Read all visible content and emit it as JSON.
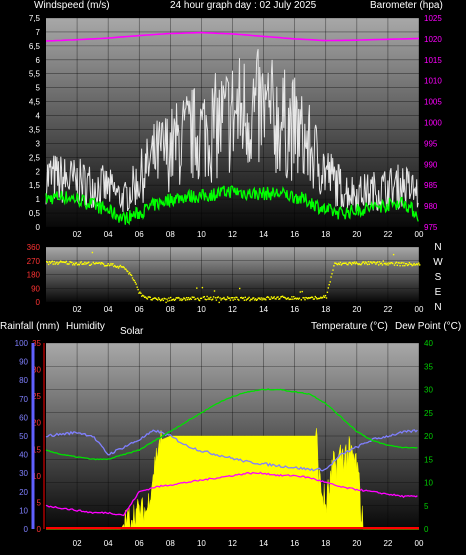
{
  "header": {
    "wind_label": "Windspeed (m/s)",
    "title": "24 hour graph day : 02 July 2025",
    "baro_label": "Barometer (hpa)"
  },
  "direction": {
    "compass": [
      "N",
      "W",
      "S",
      "E",
      "N"
    ]
  },
  "lower_header": {
    "rain_label": "Rainfall (mm)",
    "humidity_label": "Humidity",
    "solar_label": "Solar",
    "temperature_label": "Temperature (°C)",
    "dewpoint_label": "Dew Point (°C)"
  },
  "colors": {
    "wind_gust": "#e6e6e6",
    "wind_avg": "#00ff00",
    "barometer": "#ff00ff",
    "direction": "#ffff00",
    "solar": "#ffff00",
    "temperature": "#00e000",
    "humidity": "#8080ff",
    "dewpoint": "#ff00ff",
    "rain": "#ff0000"
  },
  "chart_data": [
    {
      "type": "line",
      "panel": "wind-barometer",
      "x_ticks": [
        "02",
        "04",
        "06",
        "08",
        "10",
        "12",
        "14",
        "16",
        "18",
        "20",
        "22",
        "00"
      ],
      "xlim_hours": [
        0,
        24
      ],
      "y_left_ticks": [
        "0",
        "0,5",
        "1",
        "1,5",
        "2",
        "2,5",
        "3",
        "3,5",
        "4",
        "4,5",
        "5",
        "5,5",
        "6",
        "6,5",
        "7",
        "7,5"
      ],
      "y_left_range": [
        0,
        7.5
      ],
      "y_right_ticks": [
        "975",
        "980",
        "985",
        "990",
        "995",
        "1000",
        "1005",
        "1010",
        "1015",
        "1020",
        "1025"
      ],
      "y_right_range": [
        975,
        1025
      ],
      "series": [
        {
          "key": "gust",
          "x": [
            0,
            1,
            2,
            3,
            4,
            5,
            6,
            7,
            8,
            9,
            10,
            11,
            12,
            13,
            14,
            15,
            16,
            17,
            18,
            19,
            20,
            21,
            22,
            23,
            24
          ],
          "values": [
            1.8,
            1.7,
            1.6,
            1.5,
            1.4,
            1.0,
            1.7,
            2.5,
            2.8,
            3.2,
            3.4,
            3.6,
            4.0,
            4.2,
            4.1,
            3.8,
            3.5,
            2.8,
            2.0,
            1.4,
            1.2,
            1.3,
            1.4,
            1.5,
            1.2
          ]
        },
        {
          "key": "average",
          "x": [
            0,
            1,
            2,
            3,
            4,
            5,
            6,
            7,
            8,
            9,
            10,
            11,
            12,
            13,
            14,
            15,
            16,
            17,
            18,
            19,
            20,
            21,
            22,
            23,
            24
          ],
          "values": [
            1.0,
            1.1,
            1.0,
            0.8,
            0.6,
            0.3,
            0.5,
            0.8,
            1.0,
            1.1,
            1.1,
            1.2,
            1.3,
            1.2,
            1.2,
            1.2,
            1.1,
            0.9,
            0.6,
            0.5,
            0.6,
            0.7,
            0.8,
            0.9,
            0.4
          ]
        },
        {
          "key": "barometer",
          "x": [
            0,
            2,
            4,
            6,
            8,
            10,
            12,
            14,
            16,
            18,
            20,
            22,
            24
          ],
          "values": [
            1019.5,
            1019.8,
            1020.2,
            1020.8,
            1021.3,
            1021.5,
            1021.2,
            1020.6,
            1020.0,
            1019.6,
            1019.7,
            1019.9,
            1020.1
          ]
        }
      ]
    },
    {
      "type": "scatter",
      "panel": "wind-direction",
      "x_ticks": [
        "02",
        "04",
        "06",
        "08",
        "10",
        "12",
        "14",
        "16",
        "18",
        "20",
        "22",
        "00"
      ],
      "xlim_hours": [
        0,
        24
      ],
      "y_ticks": [
        "0",
        "90",
        "180",
        "270",
        "360"
      ],
      "y_range": [
        0,
        360
      ],
      "series": [
        {
          "key": "direction",
          "x": [
            0,
            1,
            2,
            3,
            4,
            5,
            5.5,
            6,
            6.5,
            7,
            8,
            9,
            10,
            11,
            12,
            13,
            14,
            15,
            16,
            17,
            18,
            18.5,
            19,
            20,
            21,
            22,
            23,
            24
          ],
          "values": [
            260,
            262,
            258,
            255,
            250,
            230,
            170,
            60,
            30,
            20,
            22,
            25,
            30,
            28,
            26,
            24,
            28,
            32,
            30,
            25,
            40,
            250,
            255,
            258,
            258,
            255,
            252,
            250
          ]
        }
      ]
    },
    {
      "type": "line",
      "panel": "temperature-humidity-solar",
      "x_ticks": [
        "02",
        "04",
        "06",
        "08",
        "10",
        "12",
        "14",
        "16",
        "18",
        "20",
        "22",
        "00"
      ],
      "xlim_hours": [
        0,
        24
      ],
      "y_humidity_ticks": [
        "0",
        "10",
        "20",
        "30",
        "40",
        "50",
        "60",
        "70",
        "80",
        "90",
        "100"
      ],
      "y_humidity_range": [
        0,
        100
      ],
      "y_rain_ticks": [
        "0",
        "5",
        "10",
        "15",
        "20",
        "25",
        "30",
        "35"
      ],
      "y_rain_range": [
        0,
        35
      ],
      "y_temp_ticks": [
        "0",
        "5",
        "10",
        "15",
        "20",
        "25",
        "30",
        "35",
        "40"
      ],
      "y_temp_range": [
        0,
        40
      ],
      "series": [
        {
          "key": "humidity",
          "x": [
            0,
            1,
            2,
            3,
            4,
            5,
            6,
            7,
            8,
            9,
            10,
            11,
            12,
            13,
            14,
            15,
            16,
            17,
            18,
            19,
            20,
            21,
            22,
            23,
            24
          ],
          "values": [
            50,
            51,
            52,
            50,
            40,
            44,
            48,
            53,
            50,
            45,
            42,
            40,
            38,
            36,
            35,
            34,
            33,
            32,
            32,
            40,
            44,
            48,
            50,
            52,
            53
          ]
        },
        {
          "key": "temperature",
          "x": [
            0,
            1,
            2,
            3,
            4,
            5,
            6,
            7,
            8,
            9,
            10,
            11,
            12,
            13,
            14,
            15,
            16,
            17,
            18,
            19,
            20,
            21,
            22,
            23,
            24
          ],
          "values": [
            17,
            16,
            15.5,
            15,
            15,
            16,
            17,
            19,
            21,
            23,
            25,
            27,
            28.5,
            29.5,
            30,
            30,
            29.5,
            29,
            27,
            24,
            21,
            19,
            18,
            17.5,
            17.5
          ]
        },
        {
          "key": "dewpoint",
          "x": [
            0,
            1,
            2,
            3,
            4,
            5,
            6,
            7,
            8,
            9,
            10,
            11,
            12,
            13,
            14,
            15,
            16,
            17,
            18,
            19,
            20,
            21,
            22,
            23,
            24
          ],
          "values": [
            5,
            4.5,
            4,
            3.5,
            3.5,
            3,
            8,
            9,
            9.5,
            10,
            10.5,
            11,
            11.5,
            12,
            12,
            11.5,
            11.5,
            11,
            10,
            9,
            8.5,
            8,
            7.5,
            7,
            7
          ]
        },
        {
          "key": "solar",
          "x": [
            0,
            4.8,
            5.0,
            5.5,
            6,
            6.5,
            7,
            7.3,
            8,
            10,
            12,
            14,
            16,
            17,
            17.4,
            17.6,
            18,
            18.5,
            19,
            19.5,
            20,
            20.4,
            20.6,
            24
          ],
          "values": [
            0,
            0,
            1,
            3,
            4,
            4,
            14,
            19,
            20,
            20,
            20,
            20,
            20,
            20,
            20,
            10,
            5,
            13,
            16,
            16,
            14,
            0,
            0,
            0
          ]
        },
        {
          "key": "rainfall",
          "x": [
            0,
            24
          ],
          "values": [
            0,
            0
          ]
        }
      ]
    }
  ]
}
